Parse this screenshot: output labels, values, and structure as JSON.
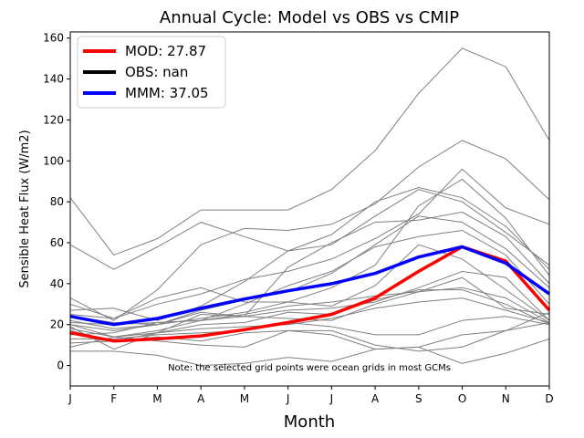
{
  "chart_data": {
    "type": "line",
    "title": "Annual Cycle: Model vs OBS vs CMIP",
    "xlabel": "Month",
    "ylabel": "Sensible Heat Flux (W/m2)",
    "categories": [
      "J",
      "F",
      "M",
      "A",
      "M",
      "J",
      "J",
      "A",
      "S",
      "O",
      "N",
      "D"
    ],
    "ylim": [
      -10,
      163
    ],
    "yticks": [
      0,
      20,
      40,
      60,
      80,
      100,
      120,
      140,
      160
    ],
    "note": "Note: the selected grid points were ocean grids in most GCMs",
    "legend_position": "top-left",
    "colors": {
      "mod": "#ff0000",
      "obs": "#000000",
      "mmm": "#0000ff",
      "cmip": "#808080"
    },
    "legend": [
      {
        "label": "MOD: 27.87",
        "color": "#ff0000"
      },
      {
        "label": "OBS: nan",
        "color": "#000000"
      },
      {
        "label": "MMM: 37.05",
        "color": "#0000ff"
      }
    ],
    "series": [
      {
        "name": "MOD",
        "values": [
          16,
          12,
          13,
          14.5,
          17.5,
          21,
          25,
          33,
          46,
          58,
          51,
          27
        ]
      },
      {
        "name": "MMM",
        "values": [
          24,
          20,
          23,
          28,
          32.5,
          36.5,
          40,
          45,
          53,
          58,
          50,
          35
        ]
      }
    ],
    "cmip_series": [
      [
        82,
        54,
        62,
        76,
        76,
        76,
        86,
        105,
        133,
        155,
        146,
        110
      ],
      [
        59,
        47,
        58,
        70,
        63,
        56,
        59,
        73,
        86,
        80,
        65,
        49
      ],
      [
        33,
        22,
        37,
        59,
        67,
        66,
        69,
        79,
        97,
        110,
        101,
        81
      ],
      [
        30,
        23,
        30,
        35,
        42,
        46,
        52,
        62,
        74,
        96,
        77,
        69
      ],
      [
        27,
        28,
        22,
        29,
        41,
        56,
        64,
        80,
        87,
        82,
        68,
        47
      ],
      [
        25,
        23,
        33,
        38,
        31,
        31,
        38,
        49,
        78,
        91,
        72,
        44
      ],
      [
        24,
        21,
        20,
        26,
        24,
        48,
        60,
        70,
        71,
        75,
        63,
        40
      ],
      [
        22,
        18,
        20,
        27,
        32,
        36,
        45,
        59,
        73,
        70,
        57,
        38
      ],
      [
        21,
        20,
        21,
        22,
        30,
        39,
        46,
        58,
        63,
        66,
        54,
        30
      ],
      [
        20,
        17,
        20,
        23,
        26,
        31,
        29,
        39,
        59,
        52,
        37,
        22
      ],
      [
        19,
        8,
        16,
        25,
        24,
        27,
        28,
        31,
        38,
        46,
        43,
        22
      ],
      [
        18,
        14,
        17,
        22,
        25,
        29,
        31,
        34,
        36,
        38,
        33,
        21
      ],
      [
        17,
        12,
        16,
        20,
        21,
        26,
        25,
        32,
        37,
        37,
        30,
        20
      ],
      [
        15,
        16,
        21,
        22,
        24,
        23,
        22,
        30,
        36,
        43,
        28,
        25
      ],
      [
        13,
        13,
        15,
        16,
        17,
        21,
        19,
        15,
        15,
        22,
        24,
        20
      ],
      [
        11,
        12,
        14,
        12,
        16,
        17,
        17,
        10,
        7,
        9,
        17,
        26
      ],
      [
        9,
        14,
        12,
        10,
        9,
        17,
        15,
        8,
        9,
        15,
        17,
        21
      ],
      [
        7,
        7,
        5,
        0,
        1,
        4,
        2,
        8,
        9,
        1,
        6,
        13
      ],
      [
        20,
        14,
        16,
        18,
        19,
        20,
        23,
        28,
        31,
        33,
        27,
        21
      ]
    ]
  }
}
